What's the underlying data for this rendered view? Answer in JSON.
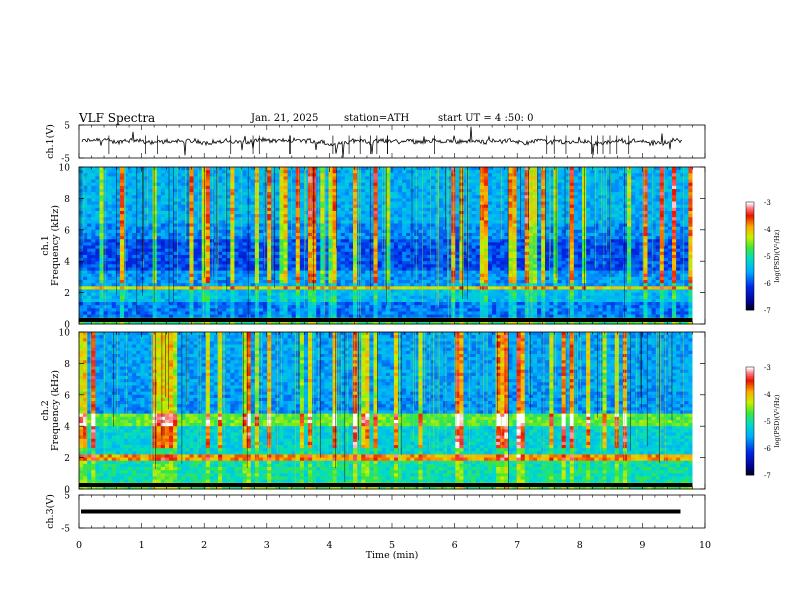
{
  "header": {
    "title": "VLF Spectra",
    "date": "Jan. 21, 2025",
    "station": "station=ATH",
    "start": "start UT =  4 :50: 0"
  },
  "chart_data": [
    {
      "type": "line",
      "panel": "ch1-waveform",
      "ylabel": "ch.1(V)",
      "ylim": [
        -5,
        5
      ],
      "yticks": [
        "5",
        "-5"
      ],
      "xlim": [
        0,
        10
      ],
      "series": [
        {
          "values_description_free": true,
          "level": 0.0,
          "noise_amplitude": 1.0
        }
      ]
    },
    {
      "type": "heatmap",
      "panel": "ch1-spectrogram",
      "ylabel": "ch.1\nFrequency (kHz)",
      "ylabel_lines": [
        "ch.1",
        "Frequency (kHz)"
      ],
      "ylim": [
        0,
        10
      ],
      "yticks": [
        "0",
        "2",
        "4",
        "6",
        "8",
        "10"
      ],
      "xlim": [
        0,
        9.8
      ],
      "colorbar": {
        "label": "log(PSD)(V²/Hz)",
        "range": [
          -7,
          -3
        ],
        "ticks": [
          "-3",
          "-4",
          "-5",
          "-6",
          "-7"
        ]
      }
    },
    {
      "type": "heatmap",
      "panel": "ch2-spectrogram",
      "ylabel_lines": [
        "ch.2",
        "Frequency (kHz)"
      ],
      "ylim": [
        0,
        10
      ],
      "yticks": [
        "0",
        "2",
        "4",
        "6",
        "8",
        "10"
      ],
      "xlim": [
        0,
        9.8
      ],
      "colorbar": {
        "label": "log(PSD)(V²/Hz)",
        "range": [
          -7,
          -3
        ],
        "ticks": [
          "-3",
          "-4",
          "-5",
          "-6",
          "-7"
        ]
      }
    },
    {
      "type": "line",
      "panel": "ch3-waveform",
      "ylabel": "ch.3(V)",
      "ylim": [
        -5,
        5
      ],
      "yticks": [
        "5",
        "-5"
      ],
      "xlim": [
        0,
        10
      ],
      "series": [
        {
          "level": 0.0
        }
      ]
    }
  ],
  "xaxis": {
    "label": "Time (min)",
    "ticks": [
      "0",
      "1",
      "2",
      "3",
      "4",
      "5",
      "6",
      "7",
      "8",
      "9",
      "10"
    ],
    "range": [
      0,
      10
    ]
  },
  "colorbar_label": "log(PSD)(V²/Hz)",
  "colors": {
    "axis": "#000000",
    "waveform": "#000000"
  }
}
